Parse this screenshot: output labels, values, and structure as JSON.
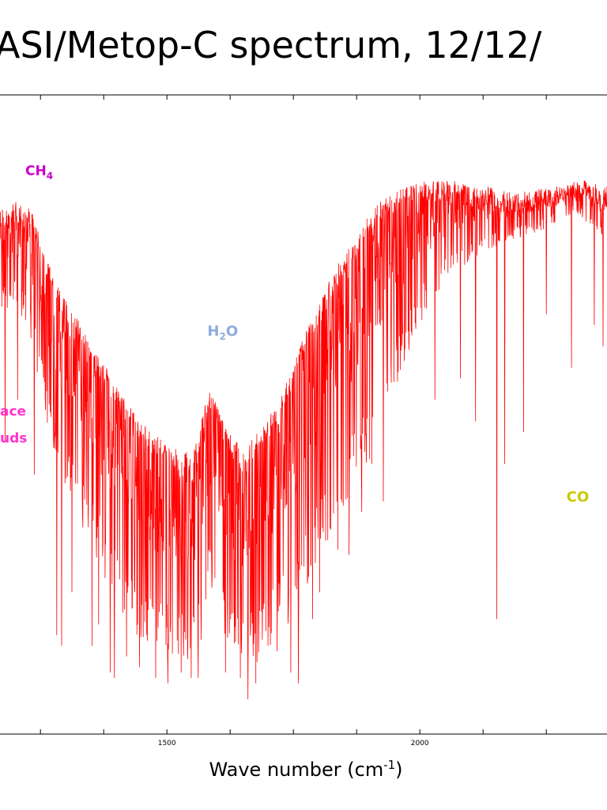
{
  "title": "ASI/Metop-C spectrum, 12/12/",
  "colors": {
    "spectrum": "#ff0000",
    "ch4": "#cc00cc",
    "h2o": "#8faadc",
    "surface": "#ff33cc",
    "co": "#c8c800"
  },
  "chart_data": {
    "type": "line",
    "title": "ASI/Metop-C spectrum, 12/12/",
    "xlabel": "Wave number",
    "xlabel_unit_base": "cm",
    "xlabel_unit_exp": "-1",
    "ylabel": "",
    "xlim": [
      1170,
      2370
    ],
    "ylim": [
      0,
      1
    ],
    "x_ticks": [
      1500,
      2000
    ],
    "grid": false,
    "annotations": [
      {
        "id": "ch4",
        "base": "CH",
        "sub": "4",
        "tail": "",
        "x": 1220,
        "y": 0.98
      },
      {
        "id": "h2o",
        "base": "H",
        "sub": "2",
        "tail": "O",
        "x": 1580,
        "y": 0.68
      },
      {
        "id": "surface1",
        "base": "ace",
        "sub": "",
        "tail": "",
        "x": 1170,
        "y": 0.53
      },
      {
        "id": "surface2",
        "base": "uds",
        "sub": "",
        "tail": "",
        "x": 1170,
        "y": 0.48
      },
      {
        "id": "co",
        "base": "CO",
        "sub": "",
        "tail": "",
        "x": 2290,
        "y": 0.37
      }
    ],
    "series": [
      {
        "envelope_top": [
          [
            1170,
            0.92
          ],
          [
            1200,
            0.93
          ],
          [
            1230,
            0.92
          ],
          [
            1260,
            0.83
          ],
          [
            1290,
            0.76
          ],
          [
            1320,
            0.72
          ],
          [
            1350,
            0.66
          ],
          [
            1380,
            0.62
          ],
          [
            1410,
            0.57
          ],
          [
            1440,
            0.53
          ],
          [
            1470,
            0.5
          ],
          [
            1500,
            0.48
          ],
          [
            1530,
            0.46
          ],
          [
            1560,
            0.48
          ],
          [
            1580,
            0.58
          ],
          [
            1600,
            0.55
          ],
          [
            1620,
            0.5
          ],
          [
            1650,
            0.47
          ],
          [
            1680,
            0.5
          ],
          [
            1710,
            0.54
          ],
          [
            1740,
            0.6
          ],
          [
            1770,
            0.68
          ],
          [
            1800,
            0.74
          ],
          [
            1830,
            0.8
          ],
          [
            1860,
            0.85
          ],
          [
            1890,
            0.9
          ],
          [
            1920,
            0.93
          ],
          [
            1950,
            0.95
          ],
          [
            1980,
            0.96
          ],
          [
            2010,
            0.97
          ],
          [
            2040,
            0.97
          ],
          [
            2070,
            0.97
          ],
          [
            2100,
            0.96
          ],
          [
            2130,
            0.96
          ],
          [
            2160,
            0.95
          ],
          [
            2190,
            0.95
          ],
          [
            2220,
            0.95
          ],
          [
            2250,
            0.96
          ],
          [
            2280,
            0.96
          ],
          [
            2310,
            0.97
          ],
          [
            2340,
            0.97
          ],
          [
            2370,
            0.96
          ]
        ],
        "envelope_low": [
          [
            1170,
            0.72
          ],
          [
            1200,
            0.74
          ],
          [
            1230,
            0.68
          ],
          [
            1260,
            0.52
          ],
          [
            1290,
            0.42
          ],
          [
            1320,
            0.35
          ],
          [
            1350,
            0.28
          ],
          [
            1380,
            0.22
          ],
          [
            1410,
            0.16
          ],
          [
            1440,
            0.12
          ],
          [
            1470,
            0.1
          ],
          [
            1500,
            0.08
          ],
          [
            1530,
            0.06
          ],
          [
            1560,
            0.05
          ],
          [
            1580,
            0.2
          ],
          [
            1600,
            0.18
          ],
          [
            1620,
            0.08
          ],
          [
            1650,
            0.06
          ],
          [
            1680,
            0.07
          ],
          [
            1710,
            0.1
          ],
          [
            1740,
            0.14
          ],
          [
            1770,
            0.2
          ],
          [
            1800,
            0.25
          ],
          [
            1830,
            0.3
          ],
          [
            1860,
            0.36
          ],
          [
            1890,
            0.42
          ],
          [
            1920,
            0.5
          ],
          [
            1950,
            0.58
          ],
          [
            1980,
            0.65
          ],
          [
            2010,
            0.72
          ],
          [
            2040,
            0.76
          ],
          [
            2070,
            0.8
          ],
          [
            2100,
            0.82
          ],
          [
            2130,
            0.84
          ],
          [
            2160,
            0.85
          ],
          [
            2190,
            0.86
          ],
          [
            2220,
            0.87
          ],
          [
            2250,
            0.88
          ],
          [
            2280,
            0.9
          ],
          [
            2310,
            0.91
          ],
          [
            2340,
            0.88
          ],
          [
            2370,
            0.86
          ]
        ],
        "deep_lines": [
          [
            1180,
            0.48
          ],
          [
            1205,
            0.56
          ],
          [
            1238,
            0.42
          ],
          [
            1282,
            0.12
          ],
          [
            1292,
            0.1
          ],
          [
            1312,
            0.2
          ],
          [
            1352,
            0.1
          ],
          [
            1365,
            0.14
          ],
          [
            1388,
            0.05
          ],
          [
            1396,
            0.04
          ],
          [
            1420,
            0.08
          ],
          [
            1446,
            0.06
          ],
          [
            1478,
            0.04
          ],
          [
            1502,
            0.03
          ],
          [
            1528,
            0.05
          ],
          [
            1548,
            0.04
          ],
          [
            1562,
            0.04
          ],
          [
            1616,
            0.05
          ],
          [
            1645,
            0.04
          ],
          [
            1660,
            0.0
          ],
          [
            1676,
            0.03
          ],
          [
            1700,
            0.1
          ],
          [
            1718,
            0.09
          ],
          [
            1745,
            0.05
          ],
          [
            1760,
            0.03
          ],
          [
            1788,
            0.15
          ],
          [
            1802,
            0.2
          ],
          [
            1822,
            0.32
          ],
          [
            1838,
            0.28
          ],
          [
            1860,
            0.27
          ],
          [
            1885,
            0.35
          ],
          [
            1905,
            0.44
          ],
          [
            1928,
            0.37
          ],
          [
            2030,
            0.56
          ],
          [
            2080,
            0.6
          ],
          [
            2110,
            0.52
          ],
          [
            2152,
            0.15
          ],
          [
            2168,
            0.44
          ],
          [
            2205,
            0.5
          ],
          [
            2250,
            0.72
          ],
          [
            2300,
            0.62
          ],
          [
            2345,
            0.7
          ],
          [
            2362,
            0.66
          ]
        ]
      }
    ]
  }
}
